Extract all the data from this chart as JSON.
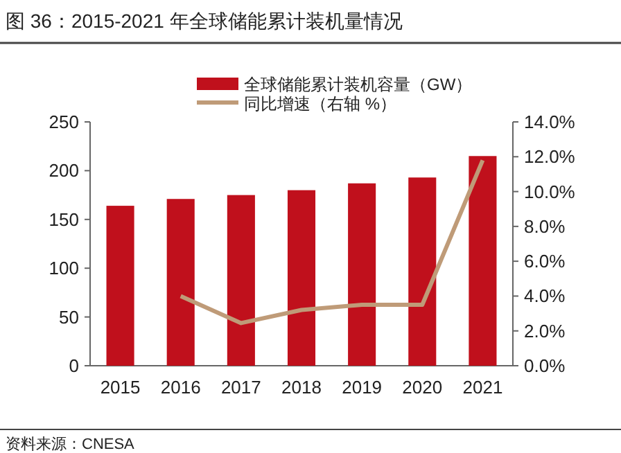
{
  "chart_data": {
    "type": "bar",
    "title": "图 36：2015-2021 年全球储能累计装机量情况",
    "categories": [
      "2015",
      "2016",
      "2017",
      "2018",
      "2019",
      "2020",
      "2021"
    ],
    "series": [
      {
        "name": "全球储能累计装机容量（GW）",
        "color": "#c0101c",
        "values": [
          164,
          171,
          175,
          180,
          187,
          193,
          215
        ]
      },
      {
        "name": "同比增速（右轴 %）",
        "type": "line",
        "axis": "y2",
        "color": "#bf9b78",
        "values": [
          null,
          4.0,
          2.45,
          3.2,
          3.5,
          3.5,
          11.8
        ]
      }
    ],
    "ylim": [
      0,
      250
    ],
    "yticks": [
      0,
      50,
      100,
      150,
      200,
      250
    ],
    "y2lim": [
      0,
      14
    ],
    "y2ticks": [
      {
        "value": 0,
        "label": "0.0%"
      },
      {
        "value": 2,
        "label": "2.0%"
      },
      {
        "value": 4,
        "label": "4.0%"
      },
      {
        "value": 6,
        "label": "6.0%"
      },
      {
        "value": 8,
        "label": "8.0%"
      },
      {
        "value": 10,
        "label": "10.0%"
      },
      {
        "value": 12,
        "label": "12.0%"
      },
      {
        "value": 14,
        "label": "14.0%"
      }
    ],
    "grid": false,
    "legend": "top",
    "marker": "none",
    "line_style": "solid",
    "annotations": [
      "资料来源：CNESA"
    ]
  }
}
